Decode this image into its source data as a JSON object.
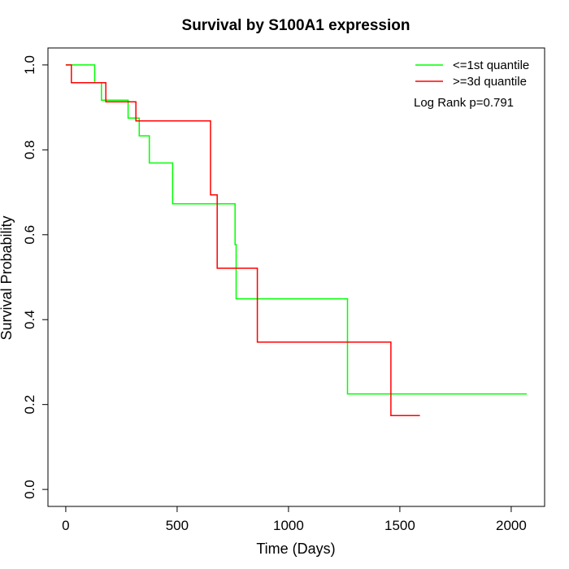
{
  "chart_data": {
    "type": "line",
    "subtype": "kaplan-meier-step",
    "title": "Survival by S100A1 expression",
    "xlabel": "Time (Days)",
    "ylabel": "Survival Probability",
    "xlim": [
      -80,
      2150
    ],
    "ylim": [
      -0.04,
      1.04
    ],
    "x_ticks": [
      0,
      500,
      1000,
      1500,
      2000
    ],
    "y_ticks": [
      0.0,
      0.2,
      0.4,
      0.6,
      0.8,
      1.0
    ],
    "x_tick_labels": [
      "0",
      "500",
      "1000",
      "1500",
      "2000"
    ],
    "y_tick_labels": [
      "0.0",
      "0.2",
      "0.4",
      "0.6",
      "0.8",
      "1.0"
    ],
    "grid": false,
    "legend_position": "top-right",
    "annotation": "Log Rank p=0.791",
    "series": [
      {
        "name": "<=1st quantile",
        "color": "#00ff00",
        "points": [
          [
            0,
            1.0
          ],
          [
            130,
            1.0
          ],
          [
            130,
            0.958
          ],
          [
            160,
            0.958
          ],
          [
            160,
            0.917
          ],
          [
            280,
            0.917
          ],
          [
            280,
            0.875
          ],
          [
            330,
            0.875
          ],
          [
            330,
            0.833
          ],
          [
            375,
            0.833
          ],
          [
            375,
            0.769
          ],
          [
            480,
            0.769
          ],
          [
            480,
            0.673
          ],
          [
            760,
            0.673
          ],
          [
            760,
            0.577
          ],
          [
            765,
            0.577
          ],
          [
            765,
            0.449
          ],
          [
            1265,
            0.449
          ],
          [
            1265,
            0.225
          ],
          [
            2070,
            0.225
          ]
        ]
      },
      {
        "name": ">=3d quantile",
        "color": "#ff0000",
        "points": [
          [
            0,
            1.0
          ],
          [
            25,
            1.0
          ],
          [
            25,
            0.958
          ],
          [
            180,
            0.958
          ],
          [
            180,
            0.913
          ],
          [
            315,
            0.913
          ],
          [
            315,
            0.868
          ],
          [
            650,
            0.868
          ],
          [
            650,
            0.694
          ],
          [
            680,
            0.694
          ],
          [
            680,
            0.521
          ],
          [
            860,
            0.521
          ],
          [
            860,
            0.347
          ],
          [
            1460,
            0.347
          ],
          [
            1460,
            0.174
          ],
          [
            1590,
            0.174
          ]
        ]
      }
    ]
  }
}
